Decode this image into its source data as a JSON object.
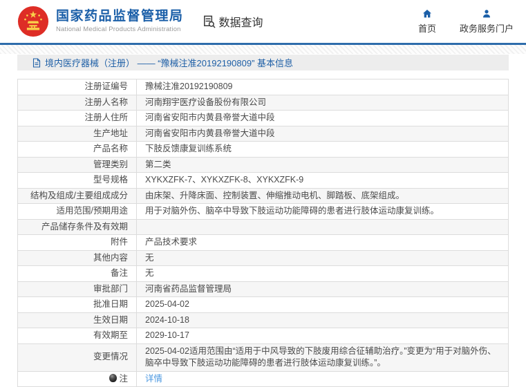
{
  "header": {
    "org_name": "国家药品监督管理局",
    "org_name_en": "National Medical Products Administration",
    "data_query_label": "数据查询",
    "nav": {
      "home_label": "首页",
      "portal_label": "政务服务门户"
    }
  },
  "breadcrumb": {
    "text": "境内医疗器械（注册） —— “豫械注准20192190809” 基本信息"
  },
  "table": {
    "rows": [
      {
        "label": "注册证编号",
        "value": "豫械注准20192190809"
      },
      {
        "label": "注册人名称",
        "value": "河南翔宇医疗设备股份有限公司"
      },
      {
        "label": "注册人住所",
        "value": "河南省安阳市内黄县帝誉大道中段"
      },
      {
        "label": "生产地址",
        "value": "河南省安阳市内黄县帝誉大道中段"
      },
      {
        "label": "产品名称",
        "value": "下肢反馈康复训练系统"
      },
      {
        "label": "管理类别",
        "value": "第二类"
      },
      {
        "label": "型号规格",
        "value": "XYKXZFK-7、XYKXZFK-8、XYKXZFK-9"
      },
      {
        "label": "结构及组成/主要组成成分",
        "value": "由床架、升降床面、控制装置、伸缩推动电机、脚踏板、底架组成。"
      },
      {
        "label": "适用范围/预期用途",
        "value": "用于对脑外伤、脑卒中导致下肢运动功能障碍的患者进行肢体运动康复训练。"
      },
      {
        "label": "产品储存条件及有效期",
        "value": ""
      },
      {
        "label": "附件",
        "value": "产品技术要求"
      },
      {
        "label": "其他内容",
        "value": "无"
      },
      {
        "label": "备注",
        "value": "无"
      },
      {
        "label": "审批部门",
        "value": "河南省药品监督管理局"
      },
      {
        "label": "批准日期",
        "value": "2025-04-02"
      },
      {
        "label": "生效日期",
        "value": "2024-10-18"
      },
      {
        "label": "有效期至",
        "value": "2029-10-17"
      },
      {
        "label": "变更情况",
        "value": "2025-04-02适用范围由“适用于中风导致的下肢废用综合征辅助治疗。”变更为“用于对脑外伤、脑卒中导致下肢运动功能障碍的患者进行肢体运动康复训练。”。"
      },
      {
        "label": "注",
        "value": "详情",
        "link": true,
        "label_icon": "note-icon"
      }
    ]
  },
  "colors": {
    "brand_blue": "#1b5fa8",
    "divider_blue": "#2e6cab",
    "link_blue": "#4a97e0",
    "emblem_red": "#de2d26",
    "emblem_yellow": "#f9d04a",
    "breadcrumb_bg": "#ededed",
    "row_alt_bg": "#f6f6f6",
    "table_border": "#dcdcdc"
  }
}
